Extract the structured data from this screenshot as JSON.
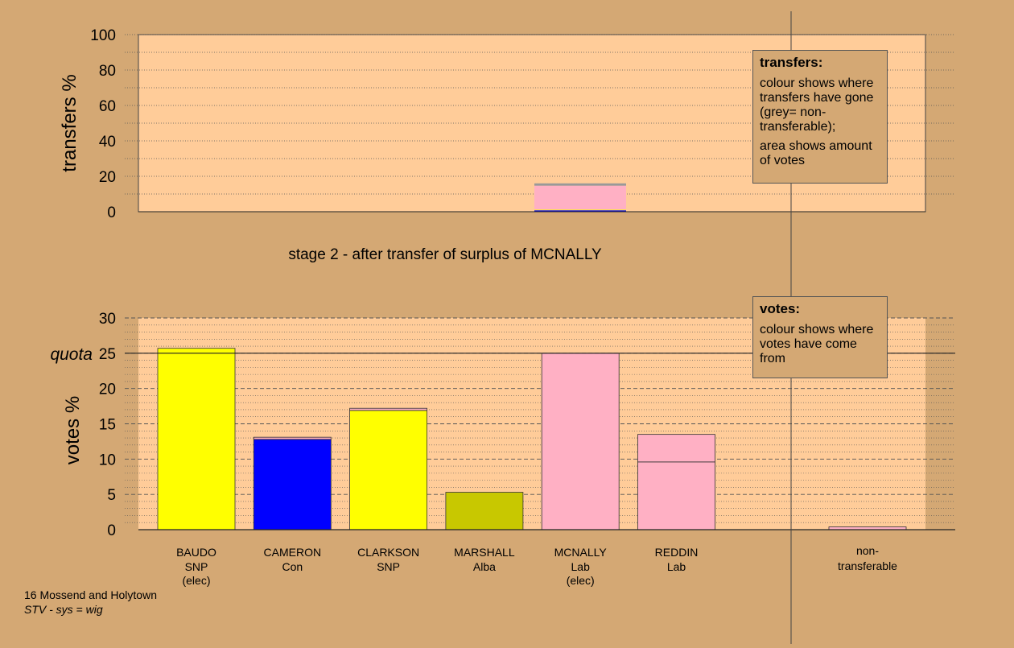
{
  "colors": {
    "background": "#d4a874",
    "plot": "#ffcc99",
    "snp": "#ffff00",
    "con": "#0000ff",
    "alba": "#c8c800",
    "lab": "#ffb0c4",
    "nontransferable": "#999999"
  },
  "transfers_legend": {
    "title": "transfers:",
    "p1": "colour shows where transfers have gone (grey= non-transferable);",
    "p2": "area shows amount of votes"
  },
  "votes_legend": {
    "title": "votes:",
    "p1": "colour shows where votes have come from"
  },
  "stage_label": "stage 2 - after transfer of surplus of MCNALLY",
  "footer": {
    "ward": "16 Mossend and Holytown",
    "system": "STV - sys = wig"
  },
  "chart_data": [
    {
      "type": "bar",
      "ylabel": "transfers %",
      "ylim": [
        0,
        100
      ],
      "yticks": [
        0,
        20,
        40,
        60,
        80,
        100
      ],
      "bars": [
        {
          "candidate": "MCNALLY",
          "segments": [
            {
              "to": "CAMERON",
              "color": "#0000ff",
              "value": 0.8
            },
            {
              "to": "CLARKSON",
              "color": "#ffff00",
              "value": 0.4
            },
            {
              "to": "REDDIN",
              "color": "#ffb0c4",
              "value": 13.5
            },
            {
              "to": "non-transferable",
              "color": "#999999",
              "value": 1.3
            }
          ]
        }
      ]
    },
    {
      "type": "bar",
      "ylabel": "votes %",
      "ylim": [
        0,
        30
      ],
      "yticks": [
        0,
        5,
        10,
        15,
        20,
        25,
        30
      ],
      "quota": 25,
      "quota_label": "quota",
      "categories": [
        {
          "name": "BAUDO",
          "party": "SNP",
          "note": "(elec)",
          "segments": [
            {
              "color": "#ffff00",
              "value": 25.7
            }
          ]
        },
        {
          "name": "CAMERON",
          "party": "Con",
          "note": "",
          "segments": [
            {
              "color": "#0000ff",
              "value": 12.8
            },
            {
              "color": "#ffb0c4",
              "value": 0.3
            }
          ]
        },
        {
          "name": "CLARKSON",
          "party": "SNP",
          "note": "",
          "segments": [
            {
              "color": "#ffff00",
              "value": 16.9
            },
            {
              "color": "#ffb0c4",
              "value": 0.3
            }
          ]
        },
        {
          "name": "MARSHALL",
          "party": "Alba",
          "note": "",
          "segments": [
            {
              "color": "#c8c800",
              "value": 5.3
            }
          ]
        },
        {
          "name": "MCNALLY",
          "party": "Lab",
          "note": "(elec)",
          "segments": [
            {
              "color": "#ffb0c4",
              "value": 25.0
            }
          ]
        },
        {
          "name": "REDDIN",
          "party": "Lab",
          "note": "",
          "segments": [
            {
              "color": "#ffb0c4",
              "value": 9.6
            },
            {
              "color": "#ffb0c4",
              "value": 3.9
            }
          ]
        }
      ],
      "nontransferable": {
        "label": "non-transferable",
        "value": 0.4,
        "color": "#ffb0c4"
      }
    }
  ]
}
